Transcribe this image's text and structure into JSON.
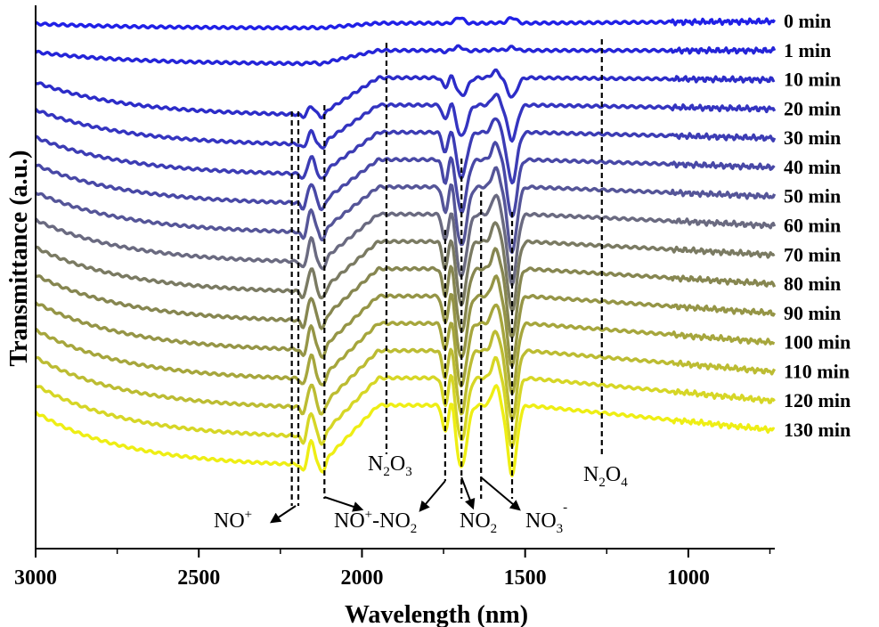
{
  "chart_data": {
    "type": "line",
    "title": "",
    "xlabel": "Wavelength (nm)",
    "ylabel": "Transmittance (a.u.)",
    "xlim": [
      3000,
      735
    ],
    "x_reversed": true,
    "xticks": [
      3000,
      2500,
      2000,
      1500,
      1000
    ],
    "xtick_labels": [
      "3000",
      "2500",
      "2000",
      "1500",
      "1000"
    ],
    "y_ticks_shown": false,
    "grid": false,
    "legend": "none; series labels at right end of curves",
    "series": [
      {
        "name": "0 min",
        "color": "#2020e6",
        "shape": 0.08,
        "band": 0.02
      },
      {
        "name": "1 min",
        "color": "#2424d8",
        "shape": 0.22,
        "band": 0.05
      },
      {
        "name": "10 min",
        "color": "#2c2cc8",
        "shape": 0.62,
        "band": 0.35
      },
      {
        "name": "20 min",
        "color": "#3434c0",
        "shape": 0.66,
        "band": 0.55
      },
      {
        "name": "30 min",
        "color": "#3c3cb4",
        "shape": 0.7,
        "band": 0.75
      },
      {
        "name": "40 min",
        "color": "#4848a6",
        "shape": 0.73,
        "band": 0.85
      },
      {
        "name": "50 min",
        "color": "#555598",
        "shape": 0.76,
        "band": 0.95
      },
      {
        "name": "60 min",
        "color": "#6a6a80",
        "shape": 0.8,
        "band": 1.0
      },
      {
        "name": "70 min",
        "color": "#7a7a62",
        "shape": 0.84,
        "band": 1.0
      },
      {
        "name": "80 min",
        "color": "#868650",
        "shape": 0.87,
        "band": 1.0
      },
      {
        "name": "90 min",
        "color": "#959546",
        "shape": 0.9,
        "band": 1.0
      },
      {
        "name": "100 min",
        "color": "#a6a63c",
        "shape": 0.93,
        "band": 1.0
      },
      {
        "name": "110 min",
        "color": "#bcbc32",
        "shape": 0.95,
        "band": 1.0
      },
      {
        "name": "120 min",
        "color": "#d6d626",
        "shape": 0.98,
        "band": 1.0
      },
      {
        "name": "130 min",
        "color": "#eeee14",
        "shape": 1.0,
        "band": 1.0
      }
    ],
    "vertical_markers": [
      {
        "x": 2215
      },
      {
        "x": 2195
      },
      {
        "x": 2115
      },
      {
        "x": 1925
      },
      {
        "x": 1745
      },
      {
        "x": 1695
      },
      {
        "x": 1635
      },
      {
        "x": 1540
      },
      {
        "x": 1265
      }
    ],
    "annotations": [
      {
        "main": "NO",
        "sup": "+",
        "arrow_to": 2203
      },
      {
        "main": "NO",
        "sup": "+",
        "mid": "-NO",
        "sub": "2",
        "arrow_from": 2110
      },
      {
        "main": "N",
        "sub": "2",
        "main2": "O",
        "sub2": "3",
        "at": 1925
      },
      {
        "main": "NO",
        "sub": "2",
        "arrow_from": 1695
      },
      {
        "main": "NO",
        "sub": "3",
        "sup": "-",
        "arrow_from": 1635
      },
      {
        "main": "N",
        "sub": "2",
        "main2": "O",
        "sub2": "4",
        "at": 1265
      }
    ]
  }
}
